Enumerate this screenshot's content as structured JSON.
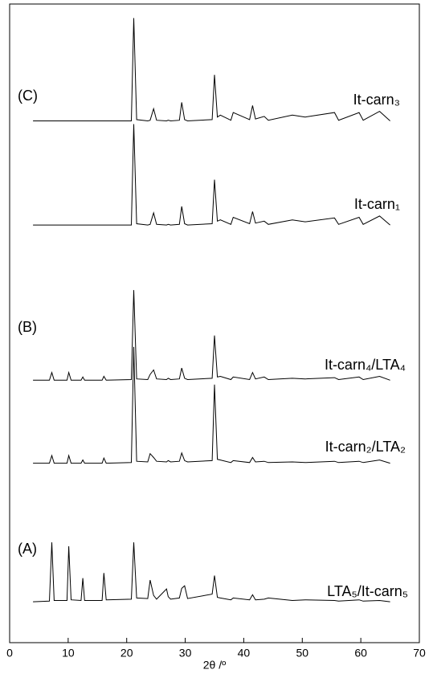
{
  "chart_data": {
    "type": "line",
    "xlabel": "2θ /º",
    "xlim": [
      0,
      70
    ],
    "xticks": [
      0,
      10,
      20,
      30,
      40,
      50,
      60,
      70
    ],
    "ylim": [
      0,
      100
    ],
    "annotations": [
      "(C)",
      "(B)",
      "(A)"
    ],
    "x": [
      4,
      6.8,
      7.2,
      7.6,
      9.8,
      10.1,
      10.5,
      12.2,
      12.5,
      12.8,
      15.8,
      16.1,
      16.5,
      20.8,
      21.2,
      21.7,
      23.6,
      24.0,
      24.6,
      25.1,
      26.8,
      27.1,
      27.5,
      29.0,
      29.4,
      29.9,
      30.4,
      34.6,
      35.0,
      35.5,
      36.0,
      37.8,
      38.2,
      41.0,
      41.5,
      42.0,
      43.5,
      44.2,
      48.3,
      50.5,
      55.5,
      56.2,
      59.7,
      60.4,
      63.2,
      65
    ],
    "series": [
      {
        "name": "It-carn₃",
        "color": "#000000",
        "values": [
          81.7,
          81.7,
          81.7,
          81.7,
          81.7,
          81.7,
          81.7,
          81.7,
          81.7,
          81.7,
          81.7,
          81.7,
          81.7,
          81.7,
          97.8,
          81.9,
          81.7,
          81.8,
          83.6,
          81.8,
          81.7,
          81.8,
          81.7,
          81.8,
          84.6,
          81.9,
          81.7,
          81.9,
          88.9,
          82.3,
          82.6,
          81.8,
          83.0,
          81.9,
          84.1,
          82.0,
          82.4,
          81.8,
          82.6,
          82.3,
          83.0,
          81.8,
          83.0,
          81.8,
          83.2,
          81.7
        ]
      },
      {
        "name": "It-carn₁",
        "color": "#000000",
        "values": [
          65.4,
          65.4,
          65.4,
          65.4,
          65.4,
          65.4,
          65.4,
          65.4,
          65.4,
          65.4,
          65.4,
          65.4,
          65.4,
          65.4,
          81.2,
          65.6,
          65.4,
          65.5,
          67.3,
          65.5,
          65.4,
          65.5,
          65.4,
          65.5,
          68.3,
          65.6,
          65.4,
          65.6,
          72.5,
          66.0,
          66.2,
          65.5,
          66.6,
          65.6,
          67.5,
          65.7,
          66.0,
          65.5,
          66.2,
          65.9,
          66.5,
          65.5,
          66.6,
          65.5,
          66.8,
          65.4
        ]
      },
      {
        "name": "It-carn₄/LTA₄",
        "color": "#000000",
        "values": [
          41.1,
          41.1,
          42.3,
          41.1,
          41.1,
          42.3,
          41.1,
          41.1,
          41.6,
          41.1,
          41.1,
          41.7,
          41.1,
          41.2,
          55.2,
          41.3,
          41.2,
          42.0,
          42.7,
          41.3,
          41.2,
          41.4,
          41.2,
          41.3,
          43.0,
          41.4,
          41.2,
          41.4,
          48.1,
          41.6,
          41.7,
          41.2,
          41.6,
          41.2,
          42.3,
          41.3,
          41.6,
          41.2,
          41.4,
          41.3,
          41.5,
          41.2,
          41.6,
          41.2,
          41.7,
          41.1
        ]
      },
      {
        "name": "It-carn₂/LTA₂",
        "color": "#000000",
        "values": [
          28.1,
          28.1,
          29.3,
          28.1,
          28.1,
          29.3,
          28.1,
          28.1,
          28.6,
          28.1,
          28.1,
          28.9,
          28.1,
          28.2,
          46.3,
          28.4,
          28.3,
          29.6,
          29.0,
          28.4,
          28.3,
          28.5,
          28.3,
          28.4,
          29.7,
          28.5,
          28.3,
          28.5,
          40.4,
          28.7,
          28.6,
          28.2,
          28.5,
          28.2,
          29.0,
          28.3,
          28.4,
          28.2,
          28.3,
          28.2,
          28.4,
          28.2,
          28.4,
          28.2,
          28.6,
          28.1
        ]
      },
      {
        "name": "LTA₅/It-carn₅",
        "color": "#000000",
        "values": [
          6.4,
          6.5,
          15.7,
          6.6,
          6.6,
          15.1,
          6.7,
          6.6,
          10.1,
          6.6,
          6.6,
          10.9,
          6.7,
          6.8,
          15.7,
          7.0,
          6.9,
          9.8,
          7.4,
          6.8,
          8.4,
          7.2,
          6.8,
          7.0,
          8.5,
          8.9,
          6.9,
          7.6,
          10.5,
          7.1,
          7.0,
          6.7,
          7.0,
          6.7,
          7.5,
          6.7,
          6.8,
          7.0,
          6.6,
          6.7,
          6.6,
          6.5,
          6.7,
          6.5,
          6.6,
          6.4
        ]
      }
    ]
  }
}
